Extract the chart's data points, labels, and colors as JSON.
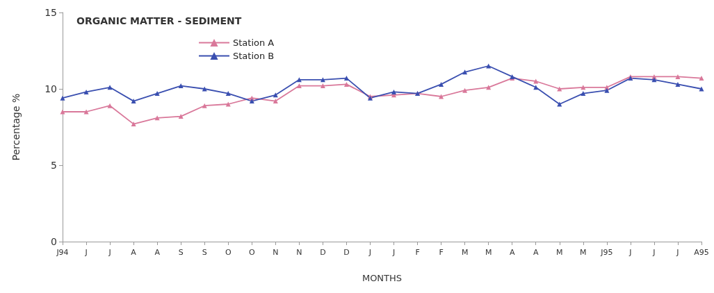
{
  "chart_data": {
    "type": "line",
    "title": "ORGANIC MATTER - SEDIMENT",
    "xlabel": "MONTHS",
    "ylabel": "Percentage %",
    "categories": [
      "J94",
      "J",
      "J",
      "A",
      "A",
      "S",
      "S",
      "O",
      "O",
      "N",
      "N",
      "D",
      "D",
      "J",
      "J",
      "F",
      "F",
      "M",
      "M",
      "A",
      "A",
      "M",
      "M",
      "J95",
      "J",
      "J",
      "J",
      "A95"
    ],
    "series": [
      {
        "name": "Station A",
        "color": "#d9789a",
        "values": [
          8.5,
          8.5,
          8.9,
          7.7,
          8.1,
          8.2,
          8.9,
          9.0,
          9.4,
          9.2,
          10.2,
          10.2,
          10.3,
          9.5,
          9.6,
          9.7,
          9.5,
          9.9,
          10.1,
          10.7,
          10.5,
          10.0,
          10.1,
          10.1,
          10.8,
          10.8,
          10.8,
          10.7
        ]
      },
      {
        "name": "Station B",
        "color": "#3a4fb0",
        "values": [
          9.4,
          9.8,
          10.1,
          9.2,
          9.7,
          10.2,
          10.0,
          9.7,
          9.2,
          9.6,
          10.6,
          10.6,
          10.7,
          9.4,
          9.8,
          9.7,
          10.3,
          11.1,
          11.5,
          10.8,
          10.1,
          9.0,
          9.7,
          9.9,
          10.7,
          10.6,
          10.3,
          10.0
        ]
      }
    ],
    "ylim": [
      0,
      15
    ],
    "yticks": [
      0,
      5,
      10,
      15
    ],
    "grid": false,
    "legend": "top left",
    "marker": "triangle",
    "line_style": "solid"
  }
}
